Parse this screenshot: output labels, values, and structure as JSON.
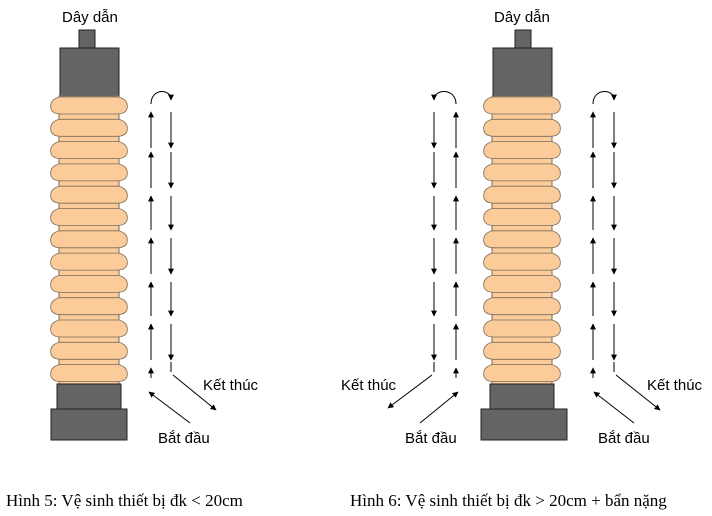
{
  "colors": {
    "shed_fill": "#FBCC99",
    "shed_stroke": "#7A6A58",
    "cap_fill": "#646464",
    "cap_stroke": "#222222",
    "arrow": "#000000"
  },
  "figure5": {
    "conductor_label": "Dây dẫn",
    "end_label": "Kết thúc",
    "start_label": "Bắt đầu",
    "caption": "Hình 5: Vệ sinh thiết bị đk < 20cm"
  },
  "figure6": {
    "conductor_label": "Dây dẫn",
    "end_label_left": "Kết thúc",
    "start_label_left": "Bắt đầu",
    "end_label_right": "Kết thúc",
    "start_label_right": "Bắt đầu",
    "caption": "Hình 6: Vệ sinh thiết bị đk > 20cm + bẩn nặng"
  }
}
